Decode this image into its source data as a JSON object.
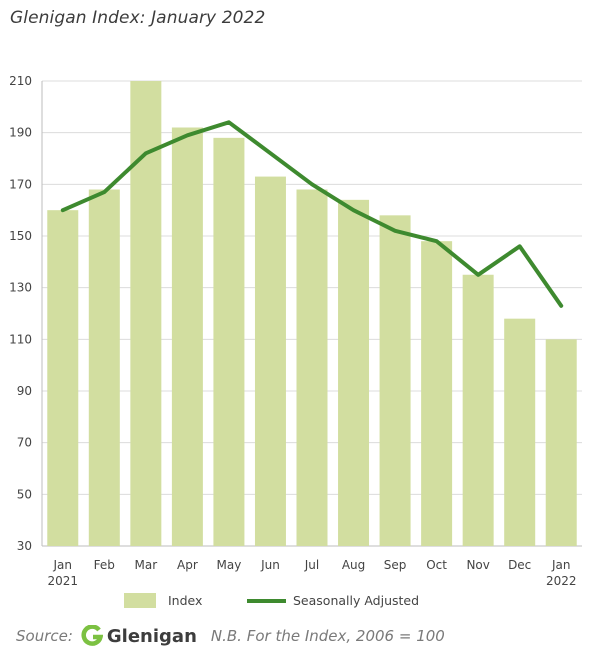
{
  "title": "Glenigan Index: January 2022",
  "source": {
    "prefix": "Source:",
    "logo_text": "Glenigan",
    "note": "N.B. For the Index, 2006 = 100"
  },
  "colors": {
    "bar": "#d2deA0",
    "line": "#3e8a2f",
    "grid": "#dcdcdc",
    "axis": "#bdbdbd",
    "logo_green": "#7cc142"
  },
  "chart_data": {
    "type": "bar",
    "categories": [
      "Jan",
      "Feb",
      "Mar",
      "Apr",
      "May",
      "Jun",
      "Jul",
      "Aug",
      "Sep",
      "Oct",
      "Nov",
      "Dec",
      "Jan"
    ],
    "category_sublabels": [
      "2021",
      "",
      "",
      "",
      "",
      "",
      "",
      "",
      "",
      "",
      "",
      "",
      "2022"
    ],
    "series": [
      {
        "name": "Index",
        "kind": "bar",
        "values": [
          160,
          168,
          210,
          192,
          188,
          173,
          168,
          164,
          158,
          148,
          135,
          118,
          110
        ]
      },
      {
        "name": "Seasonally Adjusted",
        "kind": "line",
        "values": [
          160,
          167,
          182,
          189,
          194,
          182,
          170,
          160,
          152,
          148,
          135,
          146,
          123
        ]
      }
    ],
    "yticks": [
      30,
      50,
      70,
      90,
      110,
      130,
      150,
      170,
      190,
      210
    ],
    "ylim": [
      30,
      210
    ],
    "grid": true,
    "legend_position": "bottom"
  }
}
